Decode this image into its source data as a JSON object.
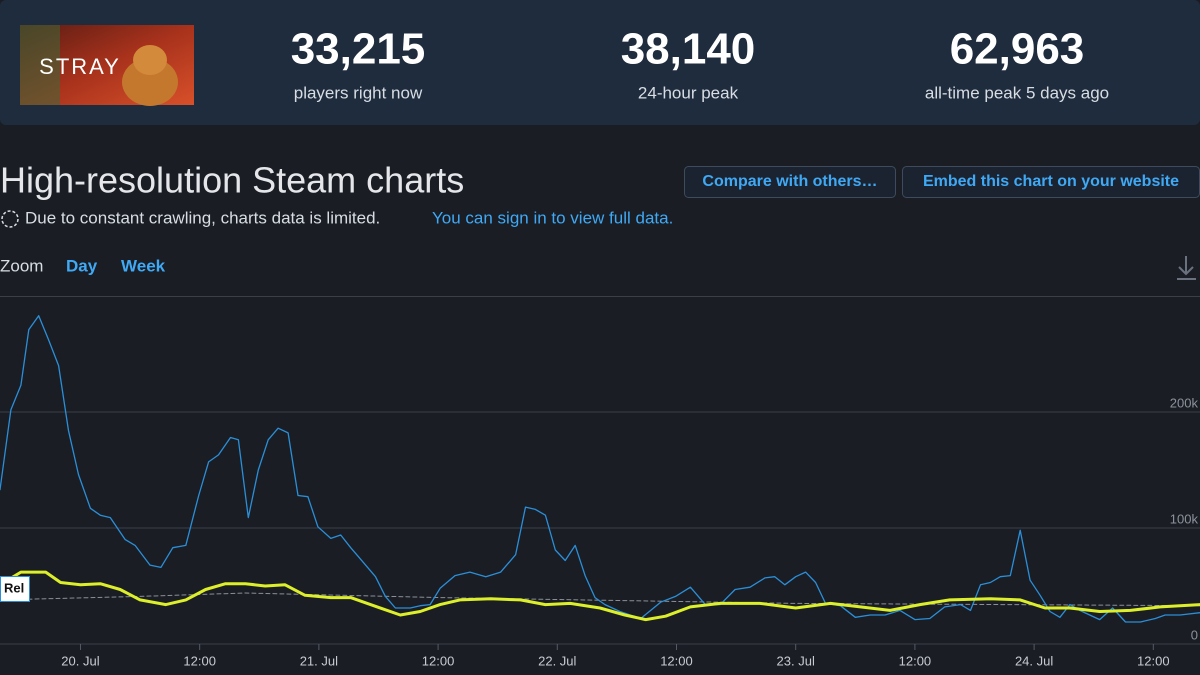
{
  "header": {
    "image_text": "STRAY",
    "stats": [
      {
        "value": "33,215",
        "label": "players right now"
      },
      {
        "value": "38,140",
        "label": "24-hour peak"
      },
      {
        "value": "62,963",
        "label": "all-time peak 5 days ago"
      }
    ]
  },
  "section": {
    "title": "High-resolution Steam charts",
    "buttons": [
      "Compare with others…",
      "Embed this chart on your website"
    ],
    "notice": "Due to constant crawling, charts data is limited.",
    "notice_link": "You can sign in to view full data."
  },
  "zoom": {
    "label": "Zoom",
    "options": [
      "Day",
      "Week"
    ]
  },
  "chart_data": {
    "type": "line",
    "xlim": [
      -8.1,
      112.7
    ],
    "xticks": [
      {
        "value": 0,
        "label": "20. Jul"
      },
      {
        "value": 12,
        "label": "12:00"
      },
      {
        "value": 24,
        "label": "21. Jul"
      },
      {
        "value": 36,
        "label": "12:00"
      },
      {
        "value": 48,
        "label": "22. Jul"
      },
      {
        "value": 60,
        "label": "12:00"
      },
      {
        "value": 72,
        "label": "23. Jul"
      },
      {
        "value": 84,
        "label": "12:00"
      },
      {
        "value": 96,
        "label": "24. Jul"
      },
      {
        "value": 108,
        "label": "12:00"
      }
    ],
    "ylim": [
      0,
      300000
    ],
    "yticks": [
      0,
      {
        "value": 100000,
        "label": "100k"
      },
      {
        "value": 200000,
        "label": "200k"
      }
    ],
    "grid": true,
    "annotations": [
      "Rel"
    ],
    "series": [
      {
        "color": "#2b8fd8",
        "width": 1.3,
        "x": [
          -8.1,
          -7.0,
          -6.0,
          -5.2,
          -4.2,
          -3.2,
          -2.2,
          -1.2,
          -0.2,
          1.0,
          2.0,
          3.0,
          4.5,
          5.5,
          7.0,
          8.1,
          9.3,
          10.6,
          11.9,
          12.9,
          13.9,
          15.1,
          15.9,
          16.9,
          17.9,
          18.9,
          19.9,
          20.9,
          21.9,
          22.9,
          23.9,
          25.2,
          26.2,
          27.2,
          28.4,
          29.7,
          30.7,
          31.7,
          33.2,
          34.2,
          35.2,
          36.2,
          37.7,
          39.2,
          40.8,
          42.3,
          43.8,
          44.8,
          45.8,
          46.8,
          47.8,
          48.8,
          49.8,
          50.8,
          51.8,
          52.8,
          54.3,
          56.4,
          57.4,
          58.4,
          59.9,
          61.4,
          62.9,
          64.4,
          65.9,
          67.4,
          68.9,
          69.9,
          70.9,
          72.0,
          73.0,
          74.0,
          75.0,
          76.5,
          78.0,
          79.5,
          81.0,
          82.5,
          84.0,
          85.5,
          87.0,
          88.6,
          89.6,
          90.6,
          91.6,
          92.6,
          93.6,
          94.6,
          95.6,
          96.6,
          97.6,
          98.6,
          99.6,
          100.6,
          101.6,
          102.6,
          103.9,
          105.2,
          106.7,
          108.2,
          109.2,
          110.7,
          112.7
        ],
        "values": [
          133000,
          202000,
          223000,
          271000,
          283000,
          262000,
          240000,
          184000,
          146000,
          117000,
          111000,
          109000,
          90000,
          85000,
          68000,
          66000,
          83000,
          85000,
          128000,
          157000,
          163000,
          178000,
          176000,
          109000,
          150000,
          176000,
          186000,
          182000,
          128000,
          127000,
          101000,
          91000,
          94000,
          83000,
          71000,
          58000,
          41000,
          31000,
          31000,
          33000,
          34000,
          48000,
          59000,
          62000,
          58000,
          62000,
          77000,
          118000,
          116000,
          111000,
          81000,
          72000,
          85000,
          59000,
          40000,
          34000,
          28000,
          22000,
          29000,
          36000,
          41000,
          49000,
          34000,
          34000,
          47000,
          49000,
          57000,
          58000,
          51000,
          58000,
          62000,
          53000,
          35000,
          33000,
          23000,
          25000,
          25000,
          29000,
          21000,
          22000,
          32000,
          34000,
          29000,
          51000,
          53000,
          58000,
          59000,
          98000,
          55000,
          42000,
          28000,
          23000,
          34000,
          29000,
          25000,
          21000,
          31000,
          19000,
          19000,
          22000,
          25000,
          25000,
          27000
        ]
      },
      {
        "color": "#dcef2a",
        "width": 3,
        "x": [
          -8.1,
          -6.0,
          -3.5,
          -2.0,
          0,
          2.0,
          4.0,
          6.0,
          8.6,
          10.6,
          12.6,
          14.6,
          16.6,
          18.6,
          20.6,
          22.6,
          25.2,
          27.2,
          29.2,
          32.2,
          34.2,
          36.2,
          38.2,
          41.3,
          44.3,
          46.8,
          49.3,
          52.3,
          54.8,
          56.9,
          58.9,
          61.4,
          64.4,
          68.4,
          72.0,
          75.5,
          78.5,
          81.5,
          84.5,
          87.5,
          91.6,
          94.6,
          97.1,
          99.6,
          102.6,
          105.7,
          108.7,
          112.7
        ],
        "values": [
          51000,
          62000,
          62000,
          53000,
          51000,
          52000,
          47000,
          38000,
          34000,
          38000,
          47000,
          52000,
          52000,
          50000,
          51000,
          42000,
          40000,
          40000,
          34000,
          25000,
          28000,
          34000,
          38000,
          39000,
          38000,
          34000,
          35000,
          31000,
          25000,
          21000,
          24000,
          32000,
          35000,
          35000,
          31000,
          35000,
          32000,
          29000,
          34000,
          38000,
          39000,
          38000,
          31000,
          31000,
          28000,
          29000,
          32000,
          34000
        ]
      },
      {
        "color": "#8a8f98",
        "width": 1,
        "dash": true,
        "x": [
          -8.1,
          6.0,
          16.6,
          36.2,
          72.0,
          112.7
        ],
        "values": [
          38000,
          41000,
          44000,
          40000,
          35000,
          33000
        ]
      }
    ]
  }
}
